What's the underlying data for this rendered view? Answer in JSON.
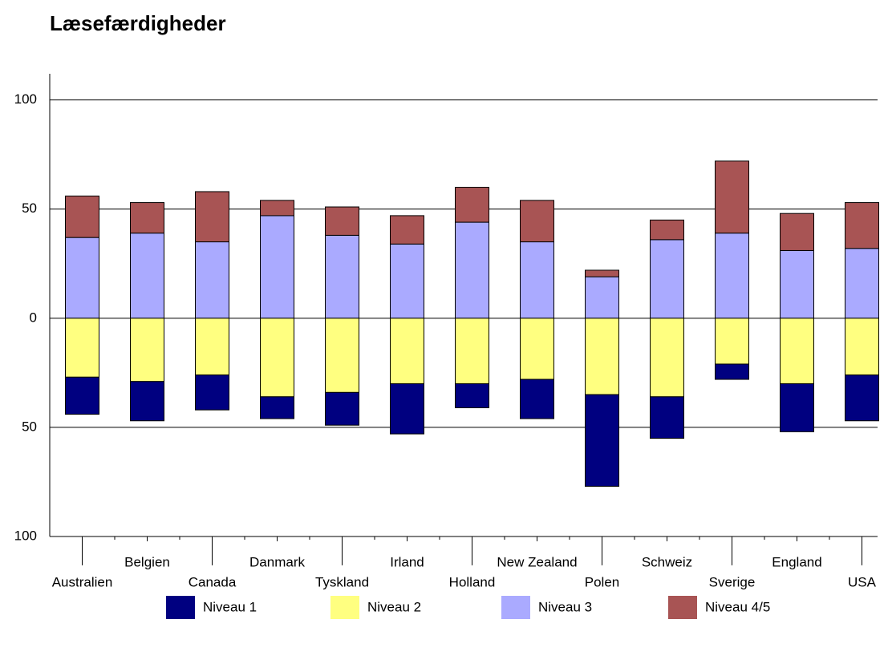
{
  "chart_data": {
    "type": "bar",
    "stacked": true,
    "title": "Læsefærdigheder",
    "categories": [
      "Australien",
      "Belgien",
      "Canada",
      "Danmark",
      "Tyskland",
      "Irland",
      "Holland",
      "New Zealand",
      "Polen",
      "Schweiz",
      "Sverige",
      "England",
      "USA"
    ],
    "series": [
      {
        "name": "Niveau 1",
        "color": "#000080",
        "values": [
          -17,
          -18,
          -16,
          -10,
          -15,
          -23,
          -11,
          -18,
          -42,
          -19,
          -7,
          -22,
          -21
        ]
      },
      {
        "name": "Niveau 2",
        "color": "#ffff80",
        "values": [
          -27,
          -29,
          -26,
          -36,
          -34,
          -30,
          -30,
          -28,
          -35,
          -36,
          -21,
          -30,
          -26
        ]
      },
      {
        "name": "Niveau 3",
        "color": "#aaaaff",
        "values": [
          37,
          39,
          35,
          47,
          38,
          34,
          44,
          35,
          19,
          36,
          39,
          31,
          32
        ]
      },
      {
        "name": "Niveau 4/5",
        "color": "#a85454",
        "values": [
          19,
          14,
          23,
          7,
          13,
          13,
          16,
          19,
          3,
          9,
          33,
          17,
          21
        ]
      }
    ],
    "ylim": [
      -100,
      112
    ],
    "yticks": [
      {
        "value": -100,
        "label": "100"
      },
      {
        "value": -50,
        "label": "50"
      },
      0,
      50,
      100
    ],
    "grid": true,
    "legend": "bottom"
  }
}
